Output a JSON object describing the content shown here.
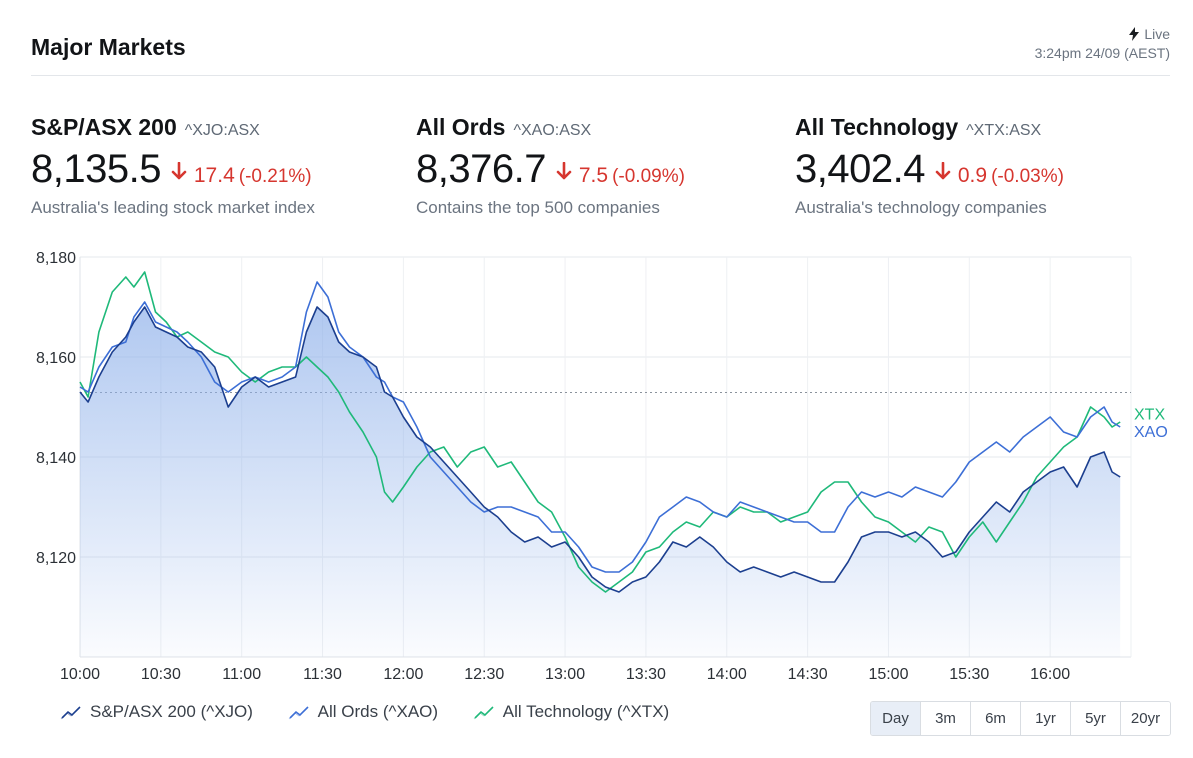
{
  "header": {
    "title": "Major Markets",
    "live_label": "Live",
    "timestamp": "3:24pm 24/09 (AEST)"
  },
  "markets": [
    {
      "name": "S&P/ASX 200",
      "code": "^XJO:ASX",
      "value": "8,135.5",
      "change": "17.4",
      "change_pct": "(-0.21%)",
      "description": "Australia's leading stock market index"
    },
    {
      "name": "All Ords",
      "code": "^XAO:ASX",
      "value": "8,376.7",
      "change": "7.5",
      "change_pct": "(-0.09%)",
      "description": "Contains the top 500 companies"
    },
    {
      "name": "All Technology",
      "code": "^XTX:ASX",
      "value": "3,402.4",
      "change": "0.9",
      "change_pct": "(-0.03%)",
      "description": "Australia's technology companies"
    }
  ],
  "colors": {
    "down": "#d6362f",
    "xjo": "#1c3f8f",
    "xao": "#3d6fd6",
    "xtx": "#1fb97a",
    "fill": "#8fb1ea"
  },
  "chart_data": {
    "type": "line",
    "ylim": [
      8100,
      8180
    ],
    "yticks": [
      8120,
      8140,
      8160,
      8180
    ],
    "ytick_labels": [
      "8,120",
      "8,140",
      "8,160",
      "8,180"
    ],
    "xtick_labels": [
      "10:00",
      "10:30",
      "11:00",
      "11:30",
      "12:00",
      "12:30",
      "13:00",
      "13:30",
      "14:00",
      "14:30",
      "15:00",
      "15:30",
      "16:00"
    ],
    "x_range_minutes": [
      600,
      990
    ],
    "previous_close": 8152.9,
    "end_labels": {
      "xtx": "XTX",
      "xao": "XAO"
    },
    "series": [
      {
        "name": "S&P/ASX 200 (^XJO)",
        "key": "xjo",
        "filled": true,
        "points": [
          [
            600,
            8153
          ],
          [
            603,
            8151
          ],
          [
            607,
            8156
          ],
          [
            612,
            8161
          ],
          [
            617,
            8164
          ],
          [
            620,
            8167
          ],
          [
            624,
            8170
          ],
          [
            628,
            8166
          ],
          [
            632,
            8165
          ],
          [
            636,
            8164
          ],
          [
            640,
            8162
          ],
          [
            645,
            8161
          ],
          [
            650,
            8158
          ],
          [
            655,
            8150
          ],
          [
            660,
            8154
          ],
          [
            665,
            8156
          ],
          [
            670,
            8154
          ],
          [
            675,
            8155
          ],
          [
            680,
            8156
          ],
          [
            684,
            8165
          ],
          [
            688,
            8170
          ],
          [
            692,
            8168
          ],
          [
            696,
            8163
          ],
          [
            700,
            8161
          ],
          [
            705,
            8160
          ],
          [
            710,
            8158
          ],
          [
            713,
            8153
          ],
          [
            716,
            8152
          ],
          [
            720,
            8148
          ],
          [
            725,
            8144
          ],
          [
            730,
            8142
          ],
          [
            735,
            8139
          ],
          [
            740,
            8136
          ],
          [
            745,
            8133
          ],
          [
            750,
            8130
          ],
          [
            755,
            8128
          ],
          [
            760,
            8125
          ],
          [
            765,
            8123
          ],
          [
            770,
            8124
          ],
          [
            775,
            8122
          ],
          [
            780,
            8123
          ],
          [
            785,
            8120
          ],
          [
            790,
            8116
          ],
          [
            795,
            8114
          ],
          [
            800,
            8113
          ],
          [
            805,
            8115
          ],
          [
            810,
            8116
          ],
          [
            815,
            8119
          ],
          [
            820,
            8123
          ],
          [
            825,
            8122
          ],
          [
            830,
            8124
          ],
          [
            835,
            8122
          ],
          [
            840,
            8119
          ],
          [
            845,
            8117
          ],
          [
            850,
            8118
          ],
          [
            855,
            8117
          ],
          [
            860,
            8116
          ],
          [
            865,
            8117
          ],
          [
            870,
            8116
          ],
          [
            875,
            8115
          ],
          [
            880,
            8115
          ],
          [
            885,
            8119
          ],
          [
            890,
            8124
          ],
          [
            895,
            8125
          ],
          [
            900,
            8125
          ],
          [
            905,
            8124
          ],
          [
            910,
            8125
          ],
          [
            915,
            8123
          ],
          [
            920,
            8120
          ],
          [
            925,
            8121
          ],
          [
            930,
            8125
          ],
          [
            935,
            8128
          ],
          [
            940,
            8131
          ],
          [
            945,
            8129
          ],
          [
            950,
            8133
          ],
          [
            955,
            8135
          ],
          [
            960,
            8137
          ],
          [
            965,
            8138
          ],
          [
            970,
            8134
          ],
          [
            975,
            8140
          ],
          [
            980,
            8141
          ],
          [
            983,
            8137
          ],
          [
            986,
            8136
          ]
        ]
      },
      {
        "name": "All Ords (^XAO)",
        "key": "xao",
        "filled": false,
        "points": [
          [
            600,
            8154
          ],
          [
            603,
            8153
          ],
          [
            607,
            8158
          ],
          [
            612,
            8162
          ],
          [
            617,
            8163
          ],
          [
            620,
            8168
          ],
          [
            624,
            8171
          ],
          [
            628,
            8167
          ],
          [
            632,
            8166
          ],
          [
            636,
            8165
          ],
          [
            640,
            8163
          ],
          [
            645,
            8160
          ],
          [
            650,
            8155
          ],
          [
            655,
            8153
          ],
          [
            660,
            8155
          ],
          [
            665,
            8156
          ],
          [
            670,
            8155
          ],
          [
            675,
            8156
          ],
          [
            680,
            8158
          ],
          [
            684,
            8169
          ],
          [
            688,
            8175
          ],
          [
            692,
            8172
          ],
          [
            696,
            8165
          ],
          [
            700,
            8162
          ],
          [
            705,
            8160
          ],
          [
            710,
            8156
          ],
          [
            713,
            8155
          ],
          [
            716,
            8152
          ],
          [
            720,
            8151
          ],
          [
            725,
            8146
          ],
          [
            730,
            8140
          ],
          [
            735,
            8137
          ],
          [
            740,
            8134
          ],
          [
            745,
            8131
          ],
          [
            750,
            8129
          ],
          [
            755,
            8130
          ],
          [
            760,
            8130
          ],
          [
            765,
            8129
          ],
          [
            770,
            8128
          ],
          [
            775,
            8125
          ],
          [
            780,
            8125
          ],
          [
            785,
            8122
          ],
          [
            790,
            8118
          ],
          [
            795,
            8117
          ],
          [
            800,
            8117
          ],
          [
            805,
            8119
          ],
          [
            810,
            8123
          ],
          [
            815,
            8128
          ],
          [
            820,
            8130
          ],
          [
            825,
            8132
          ],
          [
            830,
            8131
          ],
          [
            835,
            8129
          ],
          [
            840,
            8128
          ],
          [
            845,
            8131
          ],
          [
            850,
            8130
          ],
          [
            855,
            8129
          ],
          [
            860,
            8128
          ],
          [
            865,
            8127
          ],
          [
            870,
            8127
          ],
          [
            875,
            8125
          ],
          [
            880,
            8125
          ],
          [
            885,
            8130
          ],
          [
            890,
            8133
          ],
          [
            895,
            8132
          ],
          [
            900,
            8133
          ],
          [
            905,
            8132
          ],
          [
            910,
            8134
          ],
          [
            915,
            8133
          ],
          [
            920,
            8132
          ],
          [
            925,
            8135
          ],
          [
            930,
            8139
          ],
          [
            935,
            8141
          ],
          [
            940,
            8143
          ],
          [
            945,
            8141
          ],
          [
            950,
            8144
          ],
          [
            955,
            8146
          ],
          [
            960,
            8148
          ],
          [
            965,
            8145
          ],
          [
            970,
            8144
          ],
          [
            975,
            8148
          ],
          [
            980,
            8150
          ],
          [
            983,
            8147
          ],
          [
            986,
            8146
          ]
        ]
      },
      {
        "name": "All Technology (^XTX)",
        "key": "xtx",
        "filled": false,
        "points": [
          [
            600,
            8155
          ],
          [
            603,
            8152
          ],
          [
            607,
            8165
          ],
          [
            612,
            8173
          ],
          [
            617,
            8176
          ],
          [
            620,
            8174
          ],
          [
            624,
            8177
          ],
          [
            628,
            8169
          ],
          [
            632,
            8167
          ],
          [
            636,
            8164
          ],
          [
            640,
            8165
          ],
          [
            645,
            8163
          ],
          [
            650,
            8161
          ],
          [
            655,
            8160
          ],
          [
            660,
            8157
          ],
          [
            665,
            8155
          ],
          [
            670,
            8157
          ],
          [
            675,
            8158
          ],
          [
            680,
            8158
          ],
          [
            684,
            8160
          ],
          [
            688,
            8158
          ],
          [
            692,
            8156
          ],
          [
            696,
            8153
          ],
          [
            700,
            8149
          ],
          [
            705,
            8145
          ],
          [
            710,
            8140
          ],
          [
            713,
            8133
          ],
          [
            716,
            8131
          ],
          [
            720,
            8134
          ],
          [
            725,
            8138
          ],
          [
            730,
            8141
          ],
          [
            735,
            8142
          ],
          [
            740,
            8138
          ],
          [
            745,
            8141
          ],
          [
            750,
            8142
          ],
          [
            755,
            8138
          ],
          [
            760,
            8139
          ],
          [
            765,
            8135
          ],
          [
            770,
            8131
          ],
          [
            775,
            8129
          ],
          [
            780,
            8124
          ],
          [
            785,
            8118
          ],
          [
            790,
            8115
          ],
          [
            795,
            8113
          ],
          [
            800,
            8115
          ],
          [
            805,
            8117
          ],
          [
            810,
            8121
          ],
          [
            815,
            8122
          ],
          [
            820,
            8125
          ],
          [
            825,
            8127
          ],
          [
            830,
            8126
          ],
          [
            835,
            8129
          ],
          [
            840,
            8128
          ],
          [
            845,
            8130
          ],
          [
            850,
            8129
          ],
          [
            855,
            8129
          ],
          [
            860,
            8127
          ],
          [
            865,
            8128
          ],
          [
            870,
            8129
          ],
          [
            875,
            8133
          ],
          [
            880,
            8135
          ],
          [
            885,
            8135
          ],
          [
            890,
            8131
          ],
          [
            895,
            8128
          ],
          [
            900,
            8127
          ],
          [
            905,
            8125
          ],
          [
            910,
            8123
          ],
          [
            915,
            8126
          ],
          [
            920,
            8125
          ],
          [
            925,
            8120
          ],
          [
            930,
            8124
          ],
          [
            935,
            8127
          ],
          [
            940,
            8123
          ],
          [
            945,
            8127
          ],
          [
            950,
            8131
          ],
          [
            955,
            8136
          ],
          [
            960,
            8139
          ],
          [
            965,
            8142
          ],
          [
            970,
            8144
          ],
          [
            975,
            8150
          ],
          [
            980,
            8148
          ],
          [
            983,
            8146
          ],
          [
            986,
            8147
          ]
        ]
      }
    ],
    "legend": [
      "S&P/ASX 200 (^XJO)",
      "All Ords (^XAO)",
      "All Technology (^XTX)"
    ]
  },
  "ranges": [
    "Day",
    "3m",
    "6m",
    "1yr",
    "5yr",
    "20yr"
  ],
  "active_range": "Day"
}
